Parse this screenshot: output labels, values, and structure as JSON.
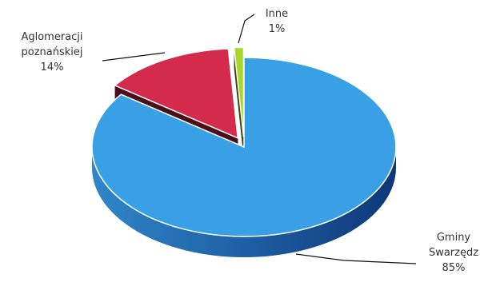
{
  "chart_data": {
    "type": "pie",
    "title": "",
    "style": "3d-exploded",
    "slices": [
      {
        "label_lines": [
          "Gminy",
          "Swarzędz"
        ],
        "percent_label": "85%",
        "value": 85,
        "color": "#3aa0e6"
      },
      {
        "label_lines": [
          "Aglomeracji",
          "poznańskiej"
        ],
        "percent_label": "14%",
        "value": 14,
        "color": "#d42a4c"
      },
      {
        "label_lines": [
          "Inne"
        ],
        "percent_label": "1%",
        "value": 1,
        "color": "#a9d62c"
      }
    ]
  }
}
